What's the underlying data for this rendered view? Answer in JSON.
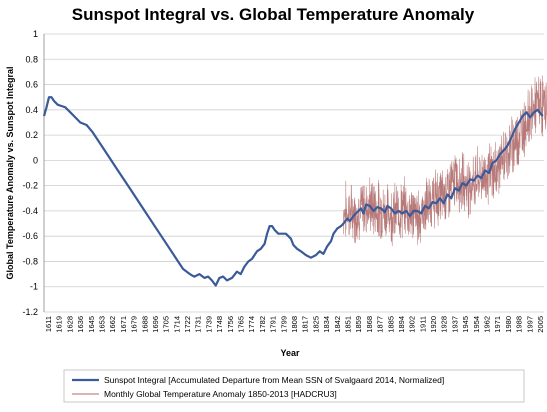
{
  "chart_data": {
    "type": "line",
    "title": "Sunspot Integral vs. Global Temperature Anomaly",
    "xlabel": "Year",
    "ylabel": "Global Temperature Anomaly vs. Sunspot Integral",
    "ylim": [
      -1.2,
      1
    ],
    "yticks": [
      "1",
      "0.8",
      "0.6",
      "0.4",
      "0.2",
      "0",
      "-0.2",
      "-0.4",
      "-0.6",
      "-0.8",
      "-1",
      "-1.2"
    ],
    "xlim": [
      1611,
      2010
    ],
    "xticks": [
      "1611",
      "1619",
      "1628",
      "1636",
      "1645",
      "1653",
      "1662",
      "1671",
      "1679",
      "1688",
      "1696",
      "1705",
      "1714",
      "1722",
      "1731",
      "1739",
      "1748",
      "1756",
      "1765",
      "1774",
      "1782",
      "1791",
      "1799",
      "1808",
      "1817",
      "1825",
      "1834",
      "1842",
      "1851",
      "1859",
      "1868",
      "1877",
      "1885",
      "1894",
      "1902",
      "1911",
      "1920",
      "1928",
      "1937",
      "1945",
      "1954",
      "1962",
      "1971",
      "1980",
      "1988",
      "1997",
      "2005"
    ],
    "grid": true,
    "legend_position": "bottom",
    "series": [
      {
        "name": "Sunspot Integral [Accumulated Departure from Mean  SSN of Svalgaard 2014, Normalized]",
        "color": "#3b5a9a",
        "x": [
          1611,
          1613,
          1615,
          1617,
          1619,
          1622,
          1625,
          1628,
          1632,
          1636,
          1640,
          1645,
          1650,
          1660,
          1670,
          1680,
          1690,
          1700,
          1710,
          1714,
          1718,
          1722,
          1726,
          1729,
          1731,
          1735,
          1739,
          1742,
          1745,
          1748,
          1751,
          1754,
          1757,
          1761,
          1765,
          1768,
          1771,
          1774,
          1777,
          1781,
          1784,
          1787,
          1789,
          1791,
          1793,
          1795,
          1798,
          1801,
          1804,
          1808,
          1810,
          1813,
          1816,
          1820,
          1824,
          1828,
          1831,
          1834,
          1837,
          1840,
          1842,
          1845,
          1848,
          1850,
          1853,
          1855,
          1858,
          1860,
          1862,
          1864,
          1866,
          1868,
          1871,
          1874,
          1877,
          1880,
          1883,
          1885,
          1888,
          1891,
          1894,
          1897,
          1900,
          1903,
          1906,
          1909,
          1912,
          1915,
          1918,
          1921,
          1924,
          1927,
          1930,
          1933,
          1936,
          1939,
          1942,
          1945,
          1948,
          1951,
          1954,
          1957,
          1960,
          1963,
          1966,
          1969,
          1972,
          1975,
          1978,
          1981,
          1984,
          1987,
          1990,
          1993,
          1996,
          1999,
          2002,
          2005,
          2009
        ],
        "y": [
          0.35,
          0.42,
          0.5,
          0.5,
          0.47,
          0.44,
          0.43,
          0.42,
          0.38,
          0.34,
          0.3,
          0.28,
          0.22,
          0.07,
          -0.08,
          -0.23,
          -0.38,
          -0.53,
          -0.68,
          -0.74,
          -0.8,
          -0.86,
          -0.89,
          -0.91,
          -0.92,
          -0.9,
          -0.93,
          -0.92,
          -0.95,
          -0.99,
          -0.93,
          -0.92,
          -0.95,
          -0.93,
          -0.88,
          -0.9,
          -0.84,
          -0.8,
          -0.78,
          -0.72,
          -0.7,
          -0.66,
          -0.58,
          -0.52,
          -0.52,
          -0.55,
          -0.58,
          -0.58,
          -0.58,
          -0.62,
          -0.67,
          -0.7,
          -0.72,
          -0.75,
          -0.77,
          -0.75,
          -0.72,
          -0.74,
          -0.68,
          -0.64,
          -0.58,
          -0.54,
          -0.52,
          -0.5,
          -0.46,
          -0.48,
          -0.44,
          -0.42,
          -0.4,
          -0.38,
          -0.42,
          -0.35,
          -0.36,
          -0.4,
          -0.37,
          -0.38,
          -0.41,
          -0.36,
          -0.38,
          -0.42,
          -0.4,
          -0.42,
          -0.4,
          -0.44,
          -0.4,
          -0.4,
          -0.42,
          -0.36,
          -0.38,
          -0.33,
          -0.34,
          -0.3,
          -0.34,
          -0.27,
          -0.3,
          -0.22,
          -0.24,
          -0.18,
          -0.2,
          -0.15,
          -0.16,
          -0.12,
          -0.14,
          -0.08,
          -0.1,
          -0.02,
          0,
          0.05,
          0.08,
          0.12,
          0.18,
          0.25,
          0.3,
          0.35,
          0.38,
          0.34,
          0.38,
          0.4,
          0.35
        ]
      },
      {
        "name": "Monthly Global Temperature  Anomaly 1850-2013  [HADCRU3]",
        "color": "#b06a6a",
        "x_range": [
          1850,
          2013
        ],
        "trend": {
          "x": [
            1850,
            1860,
            1870,
            1880,
            1890,
            1900,
            1910,
            1920,
            1930,
            1940,
            1950,
            1960,
            1970,
            1980,
            1990,
            2000,
            2005,
            2013
          ],
          "y": [
            -0.4,
            -0.42,
            -0.35,
            -0.4,
            -0.42,
            -0.38,
            -0.45,
            -0.32,
            -0.28,
            -0.15,
            -0.2,
            -0.12,
            -0.1,
            0.05,
            0.2,
            0.38,
            0.45,
            0.42
          ]
        },
        "monthly_spread": 0.18
      }
    ]
  }
}
